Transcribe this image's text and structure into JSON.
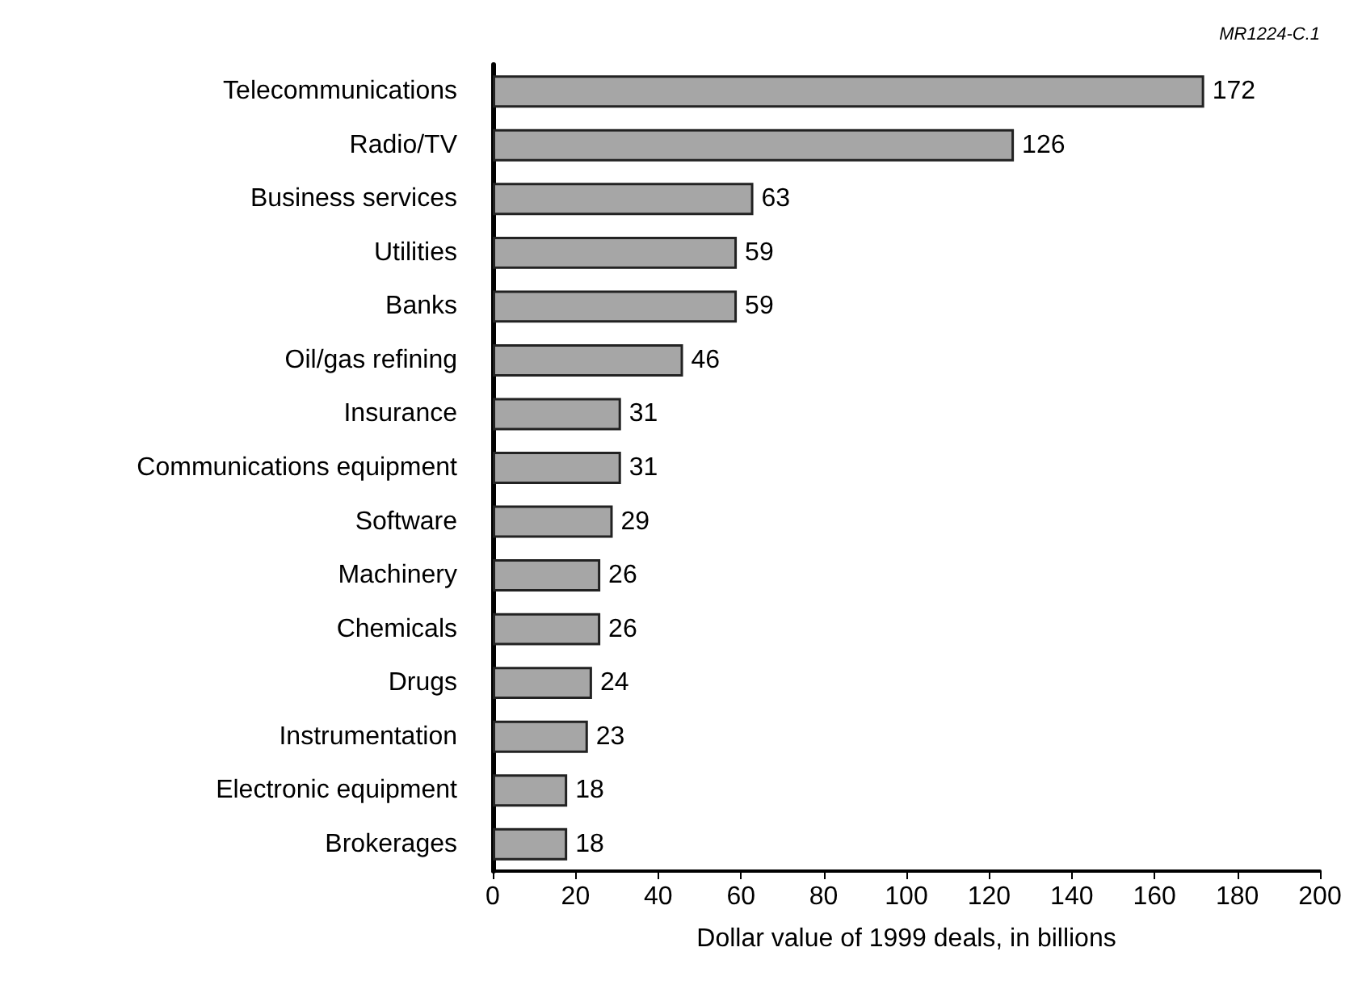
{
  "chart_data": {
    "type": "bar",
    "orientation": "horizontal",
    "categories": [
      "Telecommunications",
      "Radio/TV",
      "Business services",
      "Utilities",
      "Banks",
      "Oil/gas refining",
      "Insurance",
      "Communications equipment",
      "Software",
      "Machinery",
      "Chemicals",
      "Drugs",
      "Instrumentation",
      "Electronic equipment",
      "Brokerages"
    ],
    "values": [
      172,
      126,
      63,
      59,
      59,
      46,
      31,
      31,
      29,
      26,
      26,
      24,
      23,
      18,
      18
    ],
    "color": "#a6a6a6",
    "xlim": [
      0,
      200
    ],
    "xticks": [
      0,
      20,
      40,
      60,
      80,
      100,
      120,
      140,
      160,
      180,
      200
    ],
    "xlabel": "Dollar value of 1999 deals, in billions",
    "data_labels": true,
    "annotations": [
      "MR1224-C.1"
    ]
  }
}
